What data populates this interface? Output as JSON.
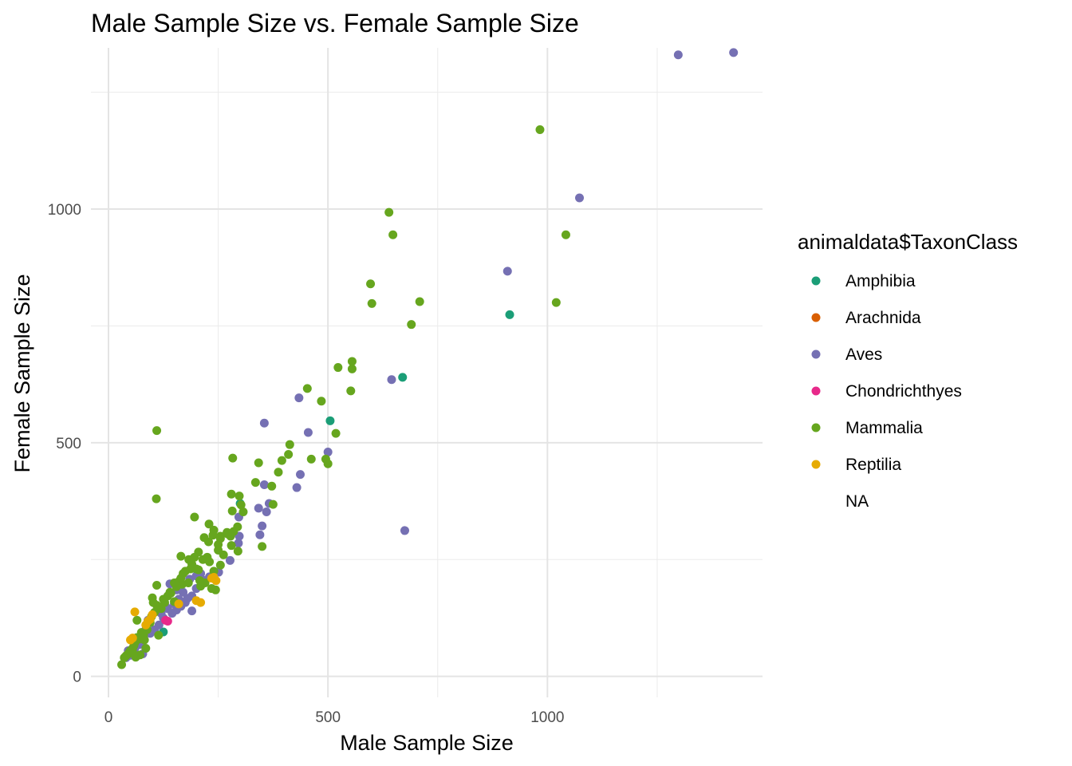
{
  "chart_data": {
    "type": "scatter",
    "title": "Male Sample Size vs. Female Sample Size",
    "xlabel": "Male Sample Size",
    "ylabel": "Female Sample Size",
    "xlim": [
      -40,
      1490
    ],
    "ylim": [
      -45,
      1345
    ],
    "x_ticks": [
      0,
      500,
      1000
    ],
    "y_ticks": [
      0,
      500,
      1000
    ],
    "x_tick_labels": [
      "0",
      "500",
      "1000"
    ],
    "y_tick_labels": [
      "0",
      "500",
      "1000"
    ],
    "grid": true,
    "legend_position": "right",
    "legend_title": "animaldata$TaxonClass",
    "series": [
      {
        "name": "Amphibia",
        "color": "#1B9E77",
        "points": [
          [
            505,
            547
          ],
          [
            914,
            774
          ],
          [
            670,
            640
          ],
          [
            300,
            370
          ],
          [
            125,
            95
          ]
        ]
      },
      {
        "name": "Arachnida",
        "color": "#D95F02",
        "points": []
      },
      {
        "name": "Aves",
        "color": "#7570B3",
        "points": [
          [
            1298,
            1330
          ],
          [
            1424,
            1335
          ],
          [
            1073,
            1024
          ],
          [
            909,
            867
          ],
          [
            645,
            635
          ],
          [
            434,
            596
          ],
          [
            355,
            542
          ],
          [
            455,
            522
          ],
          [
            500,
            480
          ],
          [
            437,
            432
          ],
          [
            429,
            404
          ],
          [
            355,
            410
          ],
          [
            360,
            352
          ],
          [
            342,
            360
          ],
          [
            366,
            370
          ],
          [
            350,
            322
          ],
          [
            345,
            303
          ],
          [
            297,
            341
          ],
          [
            298,
            300
          ],
          [
            296,
            285
          ],
          [
            277,
            248
          ],
          [
            675,
            312
          ],
          [
            251,
            223
          ],
          [
            230,
            213
          ],
          [
            215,
            206
          ],
          [
            200,
            188
          ],
          [
            190,
            172
          ],
          [
            180,
            167
          ],
          [
            175,
            158
          ],
          [
            165,
            150
          ],
          [
            155,
            142
          ],
          [
            145,
            135
          ],
          [
            140,
            198
          ],
          [
            155,
            185
          ],
          [
            170,
            180
          ],
          [
            185,
            208
          ],
          [
            200,
            215
          ],
          [
            210,
            220
          ],
          [
            160,
            165
          ],
          [
            150,
            155
          ],
          [
            135,
            145
          ],
          [
            125,
            125
          ],
          [
            115,
            110
          ],
          [
            105,
            100
          ],
          [
            95,
            92
          ],
          [
            90,
            120
          ],
          [
            85,
            100
          ],
          [
            80,
            85
          ],
          [
            75,
            75
          ],
          [
            70,
            68
          ],
          [
            60,
            60
          ],
          [
            55,
            50
          ],
          [
            50,
            45
          ],
          [
            45,
            55
          ],
          [
            40,
            40
          ],
          [
            78,
            48
          ],
          [
            190,
            140
          ],
          [
            165,
            160
          ],
          [
            130,
            150
          ],
          [
            120,
            135
          ]
        ]
      },
      {
        "name": "Chondrichthyes",
        "color": "#E7298A",
        "points": [
          [
            135,
            118
          ],
          [
            130,
            120
          ]
        ]
      },
      {
        "name": "Mammalia",
        "color": "#66A61E",
        "points": [
          [
            983,
            1170
          ],
          [
            639,
            993
          ],
          [
            648,
            945
          ],
          [
            1042,
            945
          ],
          [
            597,
            840
          ],
          [
            600,
            798
          ],
          [
            709,
            802
          ],
          [
            1020,
            800
          ],
          [
            690,
            753
          ],
          [
            555,
            674
          ],
          [
            523,
            661
          ],
          [
            555,
            658
          ],
          [
            485,
            589
          ],
          [
            453,
            616
          ],
          [
            552,
            611
          ],
          [
            518,
            520
          ],
          [
            413,
            496
          ],
          [
            495,
            465
          ],
          [
            500,
            455
          ],
          [
            462,
            465
          ],
          [
            410,
            475
          ],
          [
            395,
            462
          ],
          [
            387,
            437
          ],
          [
            283,
            467
          ],
          [
            342,
            457
          ],
          [
            335,
            415
          ],
          [
            372,
            407
          ],
          [
            375,
            368
          ],
          [
            110,
            526
          ],
          [
            109,
            380
          ],
          [
            280,
            390
          ],
          [
            298,
            386
          ],
          [
            302,
            367
          ],
          [
            307,
            352
          ],
          [
            282,
            354
          ],
          [
            294,
            320
          ],
          [
            295,
            268
          ],
          [
            350,
            278
          ],
          [
            238,
            302
          ],
          [
            240,
            313
          ],
          [
            270,
            308
          ],
          [
            285,
            310
          ],
          [
            255,
            300
          ],
          [
            250,
            282
          ],
          [
            228,
            288
          ],
          [
            218,
            297
          ],
          [
            229,
            326
          ],
          [
            196,
            341
          ],
          [
            215,
            250
          ],
          [
            205,
            266
          ],
          [
            196,
            255
          ],
          [
            190,
            240
          ],
          [
            187,
            230
          ],
          [
            183,
            250
          ],
          [
            170,
            220
          ],
          [
            165,
            210
          ],
          [
            165,
            257
          ],
          [
            162,
            205
          ],
          [
            150,
            200
          ],
          [
            142,
            178
          ],
          [
            135,
            172
          ],
          [
            128,
            158
          ],
          [
            125,
            165
          ],
          [
            120,
            145
          ],
          [
            110,
            152
          ],
          [
            105,
            137
          ],
          [
            100,
            168
          ],
          [
            110,
            195
          ],
          [
            102,
            158
          ],
          [
            98,
            128
          ],
          [
            95,
            115
          ],
          [
            88,
            100
          ],
          [
            82,
            78
          ],
          [
            75,
            94
          ],
          [
            70,
            80
          ],
          [
            65,
            83
          ],
          [
            60,
            72
          ],
          [
            58,
            66
          ],
          [
            55,
            60
          ],
          [
            50,
            55
          ],
          [
            48,
            52
          ],
          [
            45,
            48
          ],
          [
            40,
            44
          ],
          [
            36,
            40
          ],
          [
            30,
            25
          ],
          [
            55,
            52
          ],
          [
            62,
            41
          ],
          [
            72,
            46
          ],
          [
            85,
            60
          ],
          [
            114,
            88
          ],
          [
            235,
            188
          ],
          [
            244,
            185
          ],
          [
            220,
            200
          ],
          [
            210,
            193
          ],
          [
            208,
            205
          ],
          [
            230,
            245
          ],
          [
            240,
            225
          ],
          [
            255,
            238
          ],
          [
            262,
            260
          ],
          [
            280,
            280
          ],
          [
            278,
            300
          ],
          [
            271,
            305
          ],
          [
            255,
            295
          ],
          [
            250,
            270
          ],
          [
            205,
            228
          ],
          [
            225,
            255
          ],
          [
            182,
            200
          ],
          [
            168,
            197
          ],
          [
            155,
            192
          ],
          [
            140,
            180
          ],
          [
            175,
            225
          ],
          [
            200,
            230
          ],
          [
            80,
            88
          ],
          [
            65,
            120
          ],
          [
            150,
            160
          ]
        ]
      },
      {
        "name": "Reptilia",
        "color": "#E6AB02",
        "points": [
          [
            60,
            138
          ],
          [
            100,
            132
          ],
          [
            95,
            122
          ],
          [
            90,
            118
          ],
          [
            55,
            82
          ],
          [
            50,
            78
          ],
          [
            210,
            158
          ],
          [
            200,
            162
          ],
          [
            245,
            205
          ],
          [
            240,
            212
          ],
          [
            235,
            210
          ],
          [
            160,
            155
          ],
          [
            85,
            110
          ]
        ]
      },
      {
        "name": "NA",
        "color": "",
        "points": []
      }
    ]
  }
}
